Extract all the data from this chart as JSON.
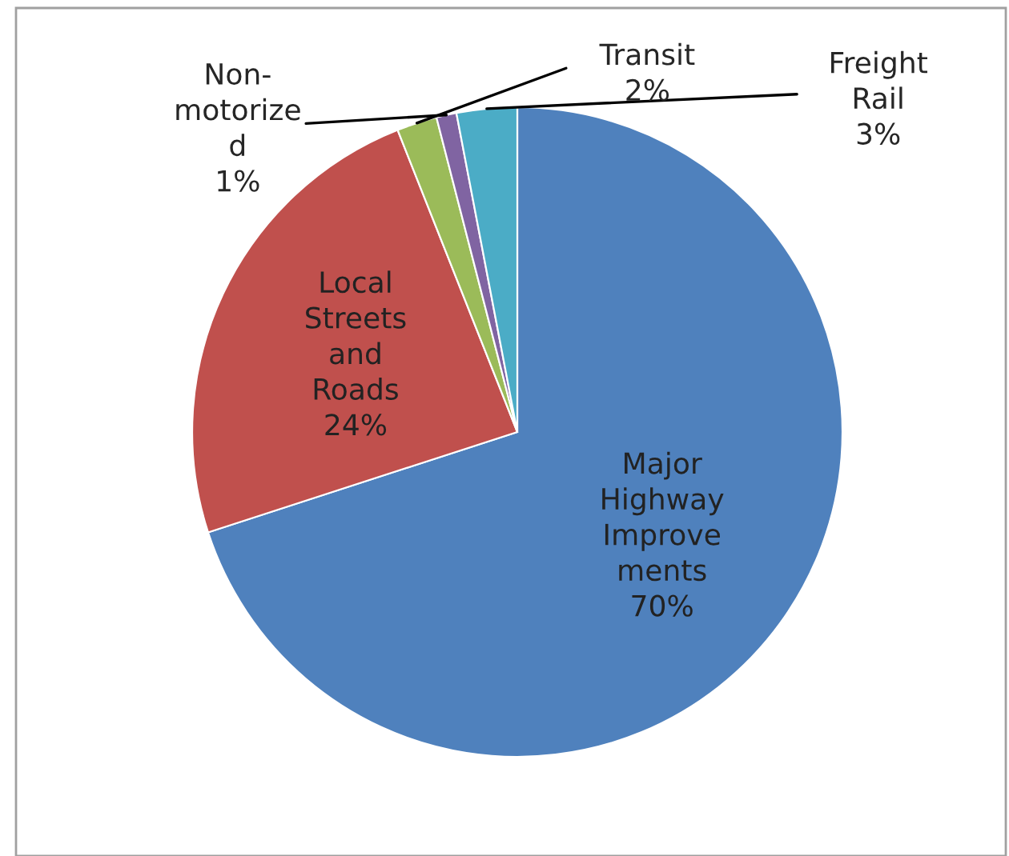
{
  "chart_data": {
    "type": "pie",
    "categories": [
      "Major\nHighway\nImprove\nments",
      "Local\nStreets\nand\nRoads",
      "Transit",
      "Non-\nmotorize\nd",
      "Freight\nRail"
    ],
    "values": [
      70,
      24,
      2,
      1,
      3
    ],
    "colors": [
      "#4f81bd",
      "#c0504d",
      "#9bbb59",
      "#8064a2",
      "#4bacc6"
    ],
    "value_labels": [
      "70%",
      "24%",
      "2%",
      "1%",
      "3%"
    ],
    "legend": false
  }
}
